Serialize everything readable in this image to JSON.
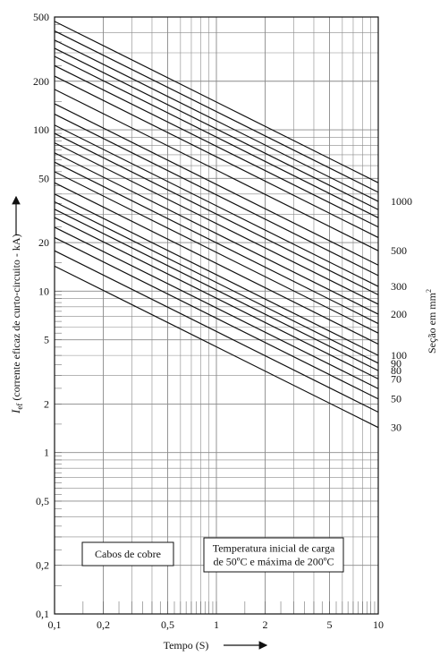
{
  "chart_data": {
    "type": "line",
    "scale": {
      "x": "log",
      "y": "log"
    },
    "xlim": [
      0.1,
      10
    ],
    "ylim": [
      0.1,
      500
    ],
    "grid": true,
    "x_ticks": [
      {
        "value": 0.1,
        "label": "0,1"
      },
      {
        "value": 0.2,
        "label": "0,2"
      },
      {
        "value": 0.5,
        "label": "0,5"
      },
      {
        "value": 1,
        "label": "1"
      },
      {
        "value": 2,
        "label": "2"
      },
      {
        "value": 5,
        "label": "5"
      },
      {
        "value": 10,
        "label": "10"
      }
    ],
    "y_ticks": [
      {
        "value": 0.1,
        "label": "0,1"
      },
      {
        "value": 0.2,
        "label": "0,2"
      },
      {
        "value": 0.5,
        "label": "0,5"
      },
      {
        "value": 1,
        "label": "1"
      },
      {
        "value": 2,
        "label": "2"
      },
      {
        "value": 5,
        "label": "5"
      },
      {
        "value": 10,
        "label": "10"
      },
      {
        "value": 20,
        "label": "20"
      },
      {
        "value": 50,
        "label": "50"
      },
      {
        "value": 100,
        "label": "100"
      },
      {
        "value": 200,
        "label": "200"
      },
      {
        "value": 500,
        "label": "500"
      }
    ],
    "xlabel": "Tempo (S)",
    "ylabel_main": "I",
    "ylabel_sub": "ef",
    "ylabel_rest": " (corrente eficaz de curto-circuito - kA)",
    "right_label": "Seção em mm",
    "right_label_sup": "2",
    "series": [
      {
        "x": [
          0.1,
          10
        ],
        "y": [
          14.3,
          1.43
        ],
        "end_label": "30"
      },
      {
        "x": [
          0.1,
          10
        ],
        "y": [
          17.8,
          1.78
        ]
      },
      {
        "x": [
          0.1,
          10
        ],
        "y": [
          21.5,
          2.15
        ],
        "end_label": "50"
      },
      {
        "x": [
          0.1,
          10
        ],
        "y": [
          24.9,
          2.49
        ]
      },
      {
        "x": [
          0.1,
          10
        ],
        "y": [
          28.6,
          2.86
        ],
        "end_label": "70"
      },
      {
        "x": [
          0.1,
          10
        ],
        "y": [
          32.2,
          3.22
        ],
        "end_label": "80"
      },
      {
        "x": [
          0.1,
          10
        ],
        "y": [
          35.8,
          3.58
        ],
        "end_label": "90"
      },
      {
        "x": [
          0.1,
          10
        ],
        "y": [
          40,
          4.0
        ],
        "end_label": "100"
      },
      {
        "x": [
          0.1,
          10
        ],
        "y": [
          47,
          4.7
        ]
      },
      {
        "x": [
          0.1,
          10
        ],
        "y": [
          55,
          5.5
        ]
      },
      {
        "x": [
          0.1,
          10
        ],
        "y": [
          63,
          6.3
        ]
      },
      {
        "x": [
          0.1,
          10
        ],
        "y": [
          72,
          7.2
        ],
        "end_label": "200"
      },
      {
        "x": [
          0.1,
          10
        ],
        "y": [
          83,
          8.3
        ]
      },
      {
        "x": [
          0.1,
          10
        ],
        "y": [
          95,
          9.5
        ]
      },
      {
        "x": [
          0.1,
          10
        ],
        "y": [
          107,
          10.7
        ],
        "end_label": "300"
      },
      {
        "x": [
          0.1,
          10
        ],
        "y": [
          125,
          12.5
        ]
      },
      {
        "x": [
          0.1,
          10
        ],
        "y": [
          145,
          14.5
        ]
      },
      {
        "x": [
          0.1,
          10
        ],
        "y": [
          178,
          17.8
        ],
        "end_label": "500"
      },
      {
        "x": [
          0.1,
          10
        ],
        "y": [
          215,
          21.5
        ]
      },
      {
        "x": [
          0.1,
          10
        ],
        "y": [
          250,
          25.0
        ]
      },
      {
        "x": [
          0.1,
          10
        ],
        "y": [
          285,
          28.5
        ]
      },
      {
        "x": [
          0.1,
          10
        ],
        "y": [
          320,
          32.0
        ]
      },
      {
        "x": [
          0.1,
          10
        ],
        "y": [
          360,
          36.0
        ],
        "end_label": "1000"
      },
      {
        "x": [
          0.1,
          10
        ],
        "y": [
          410,
          41.0
        ]
      },
      {
        "x": [
          0.1,
          10
        ],
        "y": [
          470,
          47.0
        ]
      }
    ],
    "annotations": [
      {
        "name": "cabos-de-cobre",
        "lines": [
          "Cabos de cobre"
        ]
      },
      {
        "name": "temperatura-inicial",
        "lines": [
          "Temperatura inicial de carga",
          "de 50ºC e máxima de 200ºC"
        ]
      }
    ],
    "colors": {
      "lines": "#111111",
      "grid": "#8a8a8a",
      "background": "#ffffff"
    }
  }
}
